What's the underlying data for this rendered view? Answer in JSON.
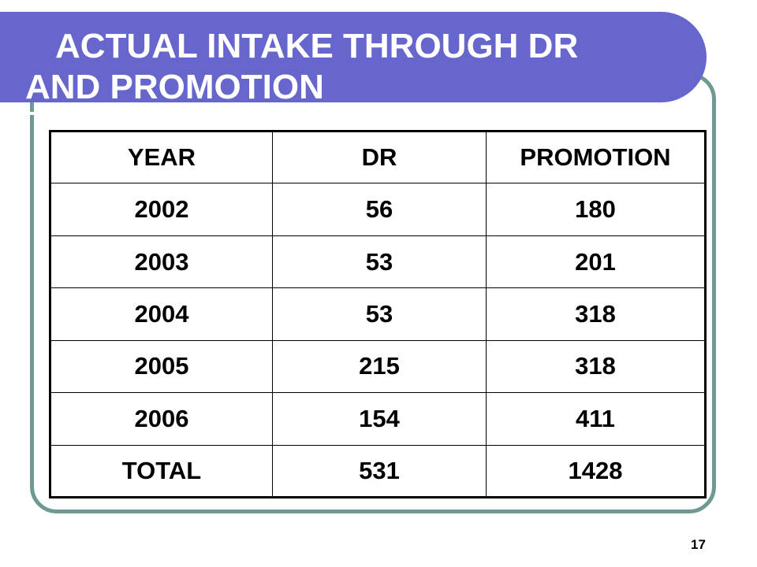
{
  "slide": {
    "title_line1": "ACTUAL INTAKE THROUGH DR",
    "title_line2": "AND PROMOTION",
    "page_number": "17",
    "colors": {
      "title_bg": "#6666cc",
      "frame": "#6f9a94",
      "highlight": "#ff0000"
    }
  },
  "table": {
    "headers": [
      "YEAR",
      "DR",
      "PROMOTION"
    ],
    "rows": [
      [
        "2002",
        "56",
        "180"
      ],
      [
        "2003",
        "53",
        "201"
      ],
      [
        "2004",
        "53",
        "318"
      ],
      [
        "2005",
        "215",
        "318"
      ],
      [
        "2006",
        "154",
        "411"
      ]
    ],
    "total": [
      "TOTAL",
      "531",
      "1428"
    ]
  }
}
